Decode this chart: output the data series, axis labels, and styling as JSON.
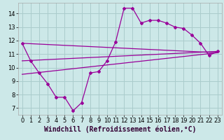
{
  "title": "",
  "xlabel": "Windchill (Refroidissement éolien,°C)",
  "ylabel": "",
  "background_color": "#cce8e8",
  "grid_color": "#aacccc",
  "line_color": "#990099",
  "xlim": [
    -0.5,
    23.5
  ],
  "ylim": [
    6.5,
    14.8
  ],
  "xticks": [
    0,
    1,
    2,
    3,
    4,
    5,
    6,
    7,
    8,
    9,
    10,
    11,
    12,
    13,
    14,
    15,
    16,
    17,
    18,
    19,
    20,
    21,
    22,
    23
  ],
  "yticks": [
    7,
    8,
    9,
    10,
    11,
    12,
    13,
    14
  ],
  "line1_x": [
    0,
    1,
    2,
    3,
    4,
    5,
    6,
    7,
    8,
    9,
    10,
    11,
    12,
    13,
    14,
    15,
    16,
    17,
    18,
    19,
    20,
    21,
    22,
    23
  ],
  "line1_y": [
    11.8,
    10.5,
    9.6,
    8.8,
    7.8,
    7.8,
    6.8,
    7.4,
    9.6,
    9.7,
    10.5,
    11.9,
    14.4,
    14.4,
    13.3,
    13.5,
    13.5,
    13.3,
    13.0,
    12.9,
    12.4,
    11.8,
    10.9,
    11.2
  ],
  "line2_x": [
    0,
    23
  ],
  "line2_y": [
    9.5,
    11.1
  ],
  "line3_x": [
    0,
    23
  ],
  "line3_y": [
    10.5,
    11.2
  ],
  "line4_x": [
    0,
    23
  ],
  "line4_y": [
    11.8,
    11.1
  ],
  "tick_fontsize": 6,
  "xlabel_fontsize": 7
}
